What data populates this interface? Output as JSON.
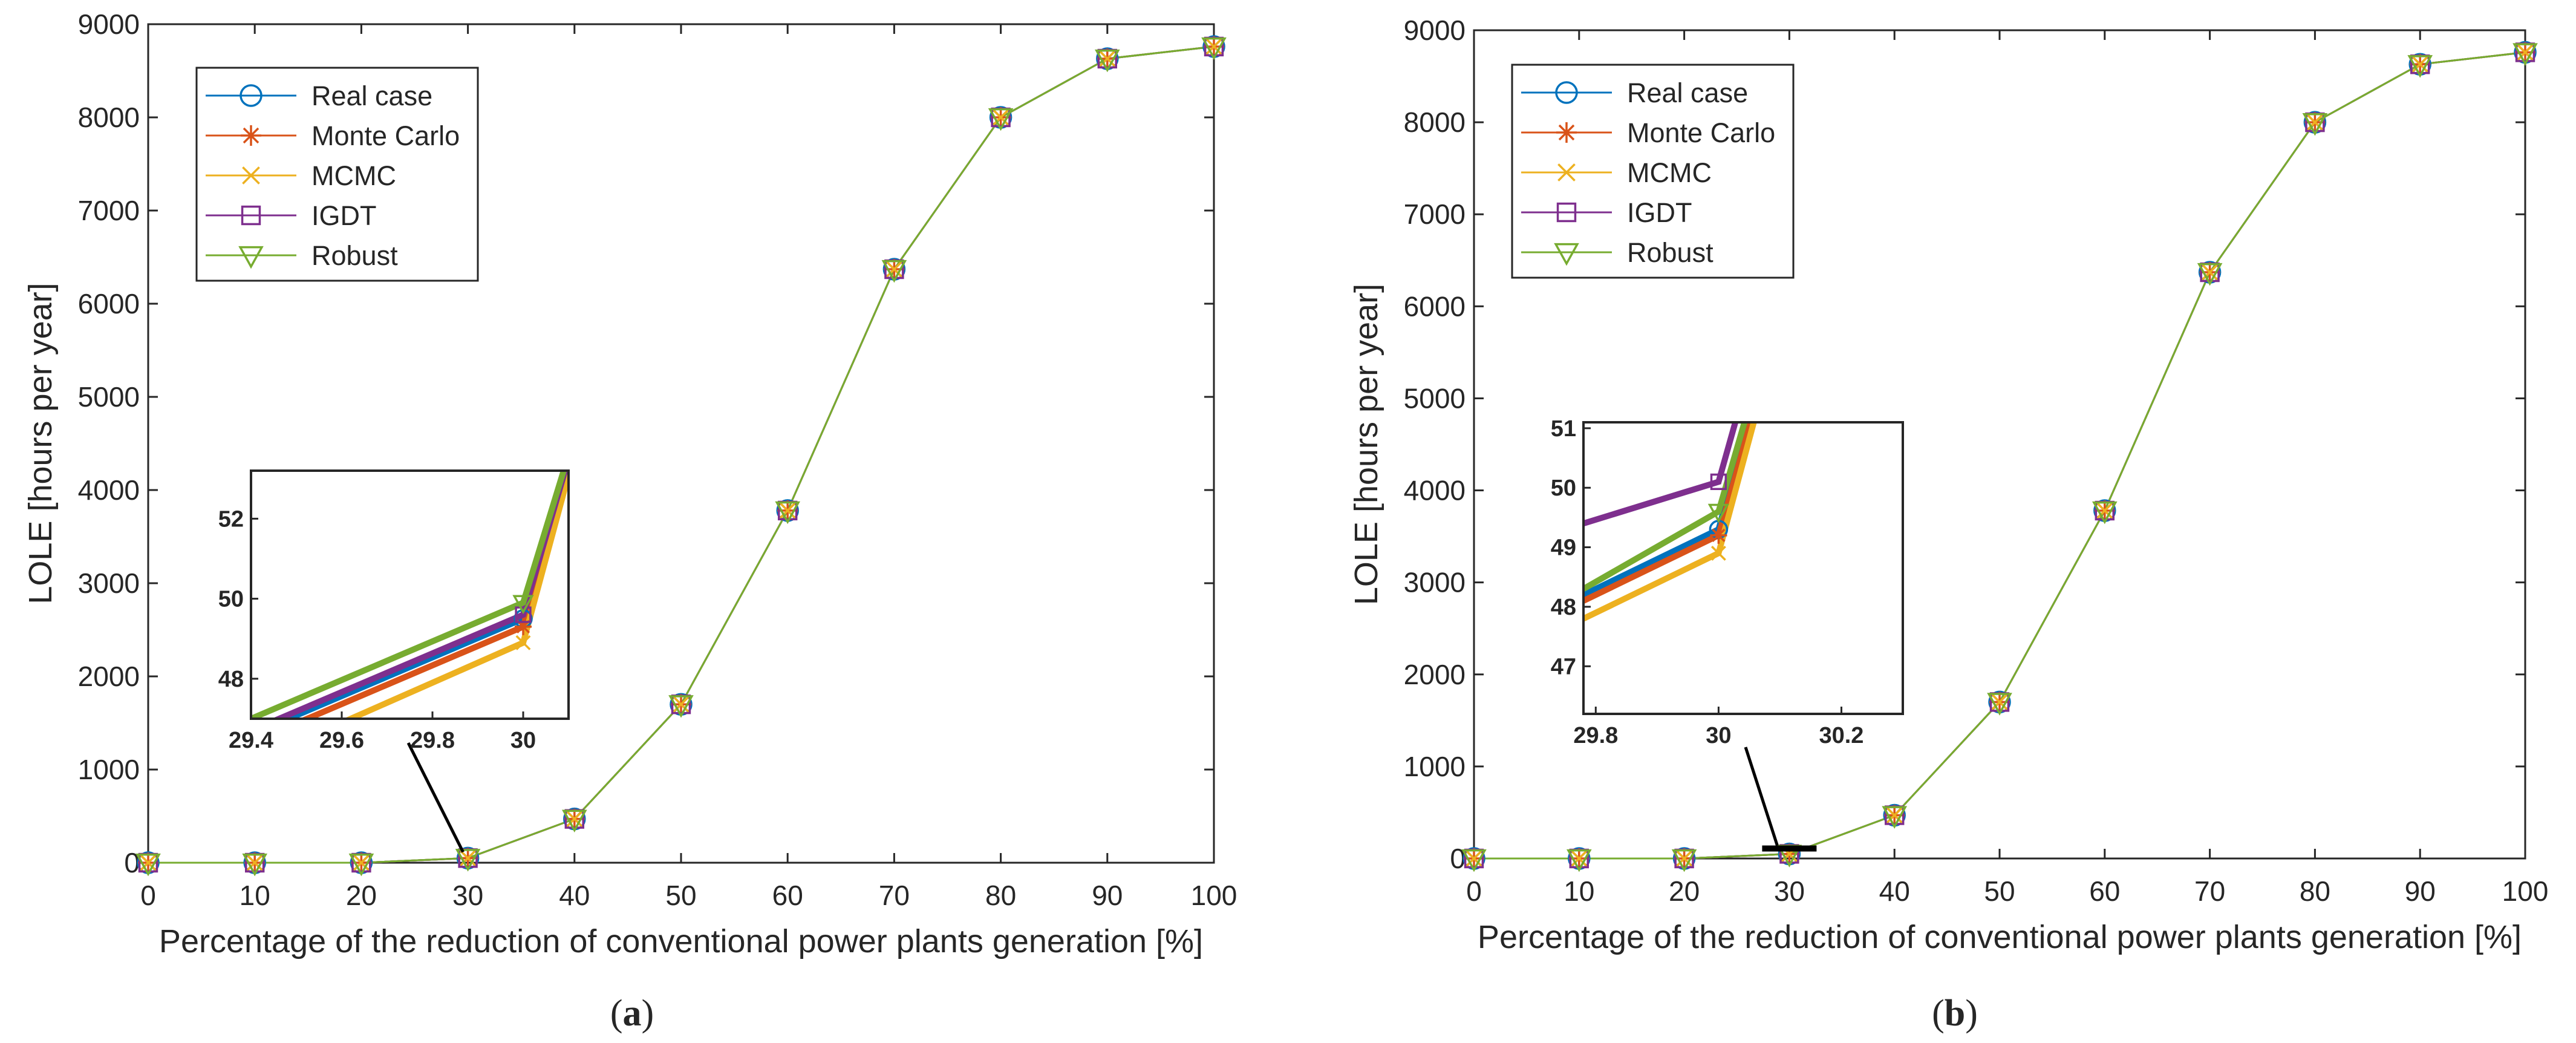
{
  "colors": {
    "real_case": "#0072BD",
    "monte_carlo": "#D95319",
    "mcmc": "#EDB120",
    "igdt": "#7E2F8E",
    "robust": "#77AC30",
    "axis": "#262626"
  },
  "chart_data": [
    {
      "type": "line",
      "caption": "(a)",
      "caption_letter": "a",
      "xlabel": "Percentage of the reduction of conventional power plants generation [%]",
      "ylabel": "LOLE [hours per year]",
      "xlim": [
        0,
        100
      ],
      "ylim": [
        0,
        9000
      ],
      "xticks": [
        0,
        10,
        20,
        30,
        40,
        50,
        60,
        70,
        80,
        90,
        100
      ],
      "yticks": [
        0,
        1000,
        2000,
        3000,
        4000,
        5000,
        6000,
        7000,
        8000,
        9000
      ],
      "grid": false,
      "legend_position": "top-left",
      "x": [
        0,
        10,
        20,
        30,
        40,
        50,
        60,
        70,
        80,
        90,
        100
      ],
      "series": [
        {
          "name": "Real case",
          "marker": "circle",
          "values": [
            0,
            0,
            0,
            49.5,
            470,
            1700,
            3780,
            6370,
            8000,
            8630,
            8760
          ]
        },
        {
          "name": "Monte Carlo",
          "marker": "star",
          "values": [
            0,
            0,
            0,
            49.3,
            470,
            1700,
            3780,
            6370,
            8000,
            8630,
            8760
          ]
        },
        {
          "name": "MCMC",
          "marker": "x",
          "values": [
            0,
            0,
            0,
            48.9,
            470,
            1700,
            3780,
            6370,
            8000,
            8630,
            8760
          ]
        },
        {
          "name": "IGDT",
          "marker": "square",
          "values": [
            0,
            0,
            0,
            49.6,
            470,
            1700,
            3780,
            6370,
            8000,
            8630,
            8760
          ]
        },
        {
          "name": "Robust",
          "marker": "triangle-down",
          "values": [
            0,
            0,
            0,
            49.9,
            470,
            1700,
            3780,
            6370,
            8000,
            8630,
            8760
          ]
        }
      ],
      "inset": {
        "xlim": [
          29.4,
          30.1
        ],
        "ylim": [
          47,
          53.2
        ],
        "xticks": [
          29.4,
          29.6,
          29.8,
          30
        ],
        "xticklabels": [
          "29.4",
          "29.6",
          "29.8",
          "30"
        ],
        "yticks": [
          48,
          50,
          52
        ],
        "yticklabels": [
          "48",
          "50",
          "52"
        ],
        "zoom_point": [
          30,
          49.5
        ],
        "series": [
          {
            "name": "Real case",
            "points": [
              [
                29.4,
                46.6
              ],
              [
                30,
                49.5
              ],
              [
                30.1,
                53.4
              ]
            ]
          },
          {
            "name": "Monte Carlo",
            "points": [
              [
                29.4,
                46.4
              ],
              [
                30,
                49.3
              ],
              [
                30.1,
                53.3
              ]
            ]
          },
          {
            "name": "MCMC",
            "points": [
              [
                29.4,
                45.9
              ],
              [
                30,
                48.9
              ],
              [
                30.1,
                53.1
              ]
            ]
          },
          {
            "name": "IGDT",
            "points": [
              [
                29.4,
                46.7
              ],
              [
                30,
                49.6
              ],
              [
                30.1,
                53.5
              ]
            ]
          },
          {
            "name": "Robust",
            "points": [
              [
                29.4,
                47.0
              ],
              [
                30,
                49.9
              ],
              [
                30.1,
                53.6
              ]
            ]
          }
        ]
      }
    },
    {
      "type": "line",
      "caption": "(b)",
      "caption_letter": "b",
      "xlabel": "Percentage of the reduction of conventional power plants generation [%]",
      "ylabel": "LOLE [hours per year]",
      "xlim": [
        0,
        100
      ],
      "ylim": [
        0,
        9000
      ],
      "xticks": [
        0,
        10,
        20,
        30,
        40,
        50,
        60,
        70,
        80,
        90,
        100
      ],
      "yticks": [
        0,
        1000,
        2000,
        3000,
        4000,
        5000,
        6000,
        7000,
        8000,
        9000
      ],
      "grid": false,
      "legend_position": "top-left",
      "x": [
        0,
        10,
        20,
        30,
        40,
        50,
        60,
        70,
        80,
        90,
        100
      ],
      "series": [
        {
          "name": "Real case",
          "marker": "circle",
          "values": [
            0,
            0,
            0,
            49.3,
            470,
            1700,
            3780,
            6370,
            8000,
            8630,
            8760
          ]
        },
        {
          "name": "Monte Carlo",
          "marker": "star",
          "values": [
            0,
            0,
            0,
            49.2,
            470,
            1700,
            3780,
            6370,
            8000,
            8630,
            8760
          ]
        },
        {
          "name": "MCMC",
          "marker": "x",
          "values": [
            0,
            0,
            0,
            48.9,
            470,
            1700,
            3780,
            6370,
            8000,
            8630,
            8760
          ]
        },
        {
          "name": "IGDT",
          "marker": "square",
          "values": [
            0,
            0,
            0,
            50.1,
            470,
            1700,
            3780,
            6370,
            8000,
            8630,
            8760
          ]
        },
        {
          "name": "Robust",
          "marker": "triangle-down",
          "values": [
            0,
            0,
            0,
            49.6,
            470,
            1700,
            3780,
            6370,
            8000,
            8630,
            8760
          ]
        }
      ],
      "inset": {
        "xlim": [
          29.78,
          30.3
        ],
        "ylim": [
          46.2,
          51.1
        ],
        "xticks": [
          29.8,
          30,
          30.2
        ],
        "xticklabels": [
          "29.8",
          "30",
          "30.2"
        ],
        "yticks": [
          47,
          48,
          49,
          50,
          51
        ],
        "yticklabels": [
          "47",
          "48",
          "49",
          "50",
          "51"
        ],
        "zoom_point": [
          30,
          49.3
        ],
        "series": [
          {
            "name": "Real case",
            "points": [
              [
                29.78,
                48.2
              ],
              [
                30,
                49.3
              ],
              [
                30.05,
                51.2
              ]
            ]
          },
          {
            "name": "Monte Carlo",
            "points": [
              [
                29.78,
                48.1
              ],
              [
                30,
                49.2
              ],
              [
                30.055,
                51.2
              ]
            ]
          },
          {
            "name": "MCMC",
            "points": [
              [
                29.78,
                47.8
              ],
              [
                30,
                48.9
              ],
              [
                30.06,
                51.2
              ]
            ]
          },
          {
            "name": "IGDT",
            "points": [
              [
                29.78,
                49.4
              ],
              [
                30,
                50.1
              ],
              [
                30.03,
                51.2
              ]
            ]
          },
          {
            "name": "Robust",
            "points": [
              [
                29.78,
                48.3
              ],
              [
                30,
                49.6
              ],
              [
                30.045,
                51.2
              ]
            ]
          }
        ]
      }
    }
  ]
}
